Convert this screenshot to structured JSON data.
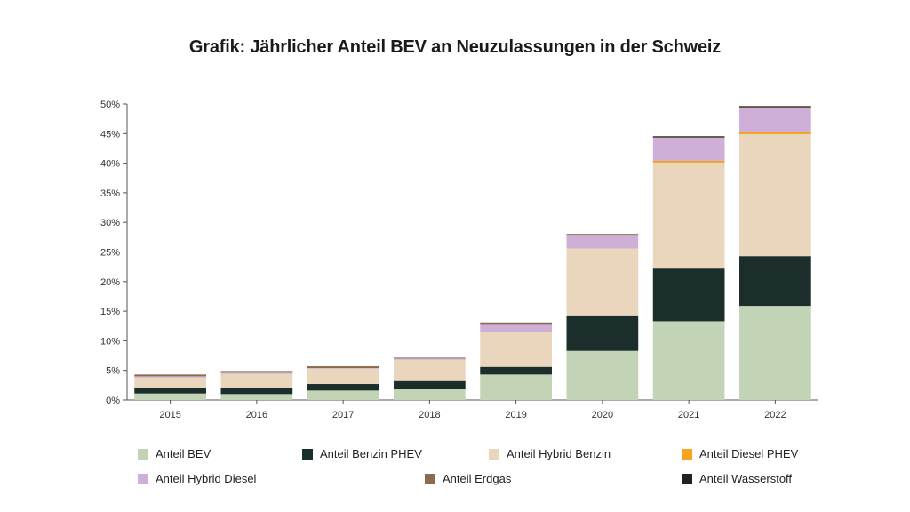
{
  "chart_data": {
    "type": "bar",
    "stacked": true,
    "title": "Grafik: Jährlicher Anteil BEV an Neuzulassungen in der Schweiz",
    "xlabel": "",
    "ylabel": "",
    "categories": [
      "2015",
      "2016",
      "2017",
      "2018",
      "2019",
      "2020",
      "2021",
      "2022"
    ],
    "ylim": [
      0,
      50
    ],
    "yticks": [
      0,
      5,
      10,
      15,
      20,
      25,
      30,
      35,
      40,
      45,
      50
    ],
    "ytick_labels": [
      "0%",
      "5%",
      "10%",
      "15%",
      "20%",
      "25%",
      "30%",
      "35%",
      "40%",
      "45%",
      "50%"
    ],
    "grid": false,
    "legend_position": "bottom",
    "series": [
      {
        "name": "Anteil BEV",
        "color": "#c3d3b5",
        "values": [
          1.1,
          1.0,
          1.6,
          1.8,
          4.3,
          8.3,
          13.3,
          15.9
        ]
      },
      {
        "name": "Anteil Benzin PHEV",
        "color": "#1c2e2c",
        "values": [
          0.9,
          1.1,
          1.1,
          1.4,
          1.3,
          6.0,
          8.9,
          8.4
        ]
      },
      {
        "name": "Anteil Hybrid Benzin",
        "color": "#ead6bd",
        "values": [
          1.8,
          2.3,
          2.6,
          3.6,
          5.9,
          11.3,
          17.9,
          20.6
        ]
      },
      {
        "name": "Anteil Diesel PHEV",
        "color": "#f5a320",
        "values": [
          0.0,
          0.0,
          0.0,
          0.0,
          0.0,
          0.0,
          0.3,
          0.3
        ]
      },
      {
        "name": "Anteil Hybrid Diesel",
        "color": "#cfaed7",
        "values": [
          0.2,
          0.2,
          0.1,
          0.2,
          1.2,
          2.3,
          3.9,
          4.2
        ]
      },
      {
        "name": "Anteil Erdgas",
        "color": "#8c6a4e",
        "values": [
          0.3,
          0.3,
          0.3,
          0.1,
          0.4,
          0.1,
          0.1,
          0.1
        ]
      },
      {
        "name": "Anteil Wasserstoff",
        "color": "#222222",
        "values": [
          0.0,
          0.0,
          0.0,
          0.0,
          0.0,
          0.0,
          0.05,
          0.05
        ]
      }
    ]
  }
}
